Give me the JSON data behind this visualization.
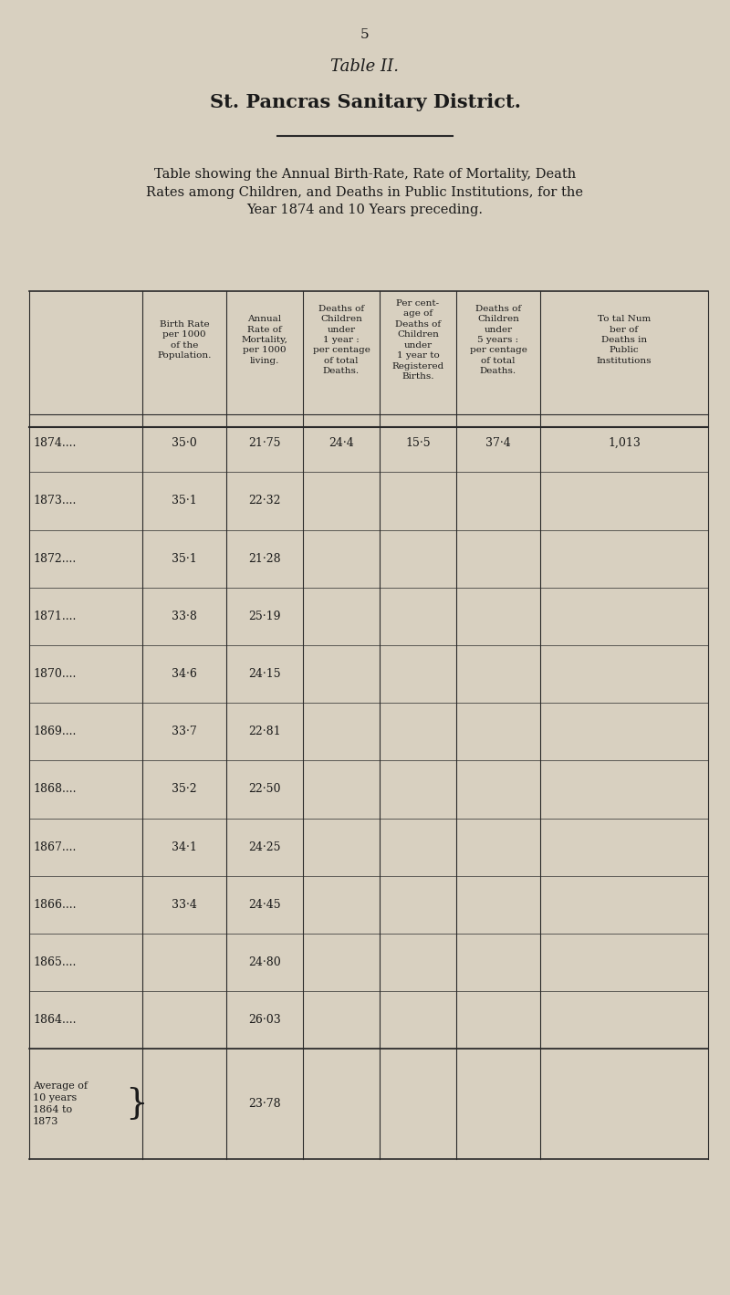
{
  "page_number": "5",
  "title1": "Table II.",
  "title2": "St. Pancras Sanitary District.",
  "subtitle": "Table showing the Annual Birth-Rate, Rate of Mortality, Death\nRates among Children, and Deaths in Public Institutions, for the\nYear 1874 and 10 Years preceding.",
  "col_headers": [
    "Birth Rate\nper 1000\nof the\nPopulation.",
    "Annual\nRate of\nMortality,\nper 1000\nliving.",
    "Deaths of\nChildren\nunder\n1 year :\nper centage\nof total\nDeaths.",
    "Per cent-\nage of\nDeaths of\nChildren\nunder\n1 year to\nRegistered\nBirths.",
    "Deaths of\nChildren\nunder\n5 years :\nper centage\nof total\nDeaths.",
    "To tal Num\nber of\nDeaths in\nPublic\nInstitutions"
  ],
  "years": [
    "1874....",
    "1873....",
    "1872....",
    "1871....",
    "1870....",
    "1869....",
    "1868....",
    "1867....",
    "1866....",
    "1865....",
    "1864...."
  ],
  "birth_rate": [
    "35·0",
    "35·1",
    "35·1",
    "33·8",
    "34·6",
    "33·7",
    "35·2",
    "34·1",
    "33·4",
    "",
    ""
  ],
  "mortality": [
    "21·75",
    "22·32",
    "21·28",
    "25·19",
    "24·15",
    "22·81",
    "22·50",
    "24·25",
    "24·45",
    "24·80",
    "26·03"
  ],
  "deaths_under1_pct_total": [
    "24·4",
    "",
    "",
    "",
    "",
    "",
    "",
    "",
    "",
    "",
    ""
  ],
  "deaths_under1_pct_births": [
    "15·5",
    "",
    "",
    "",
    "",
    "",
    "",
    "",
    "",
    "",
    ""
  ],
  "deaths_under5_pct_total": [
    "37·4",
    "",
    "",
    "",
    "",
    "",
    "",
    "",
    "",
    "",
    ""
  ],
  "deaths_public_inst": [
    "1,013",
    "",
    "",
    "",
    "",
    "",
    "",
    "",
    "",
    "",
    ""
  ],
  "avg_label": "Average of\n10 years\n1864 to\n1873",
  "avg_mortality": "23·78",
  "bg_color": "#d8d0c0",
  "text_color": "#1a1a1a",
  "line_color": "#2a2a2a"
}
